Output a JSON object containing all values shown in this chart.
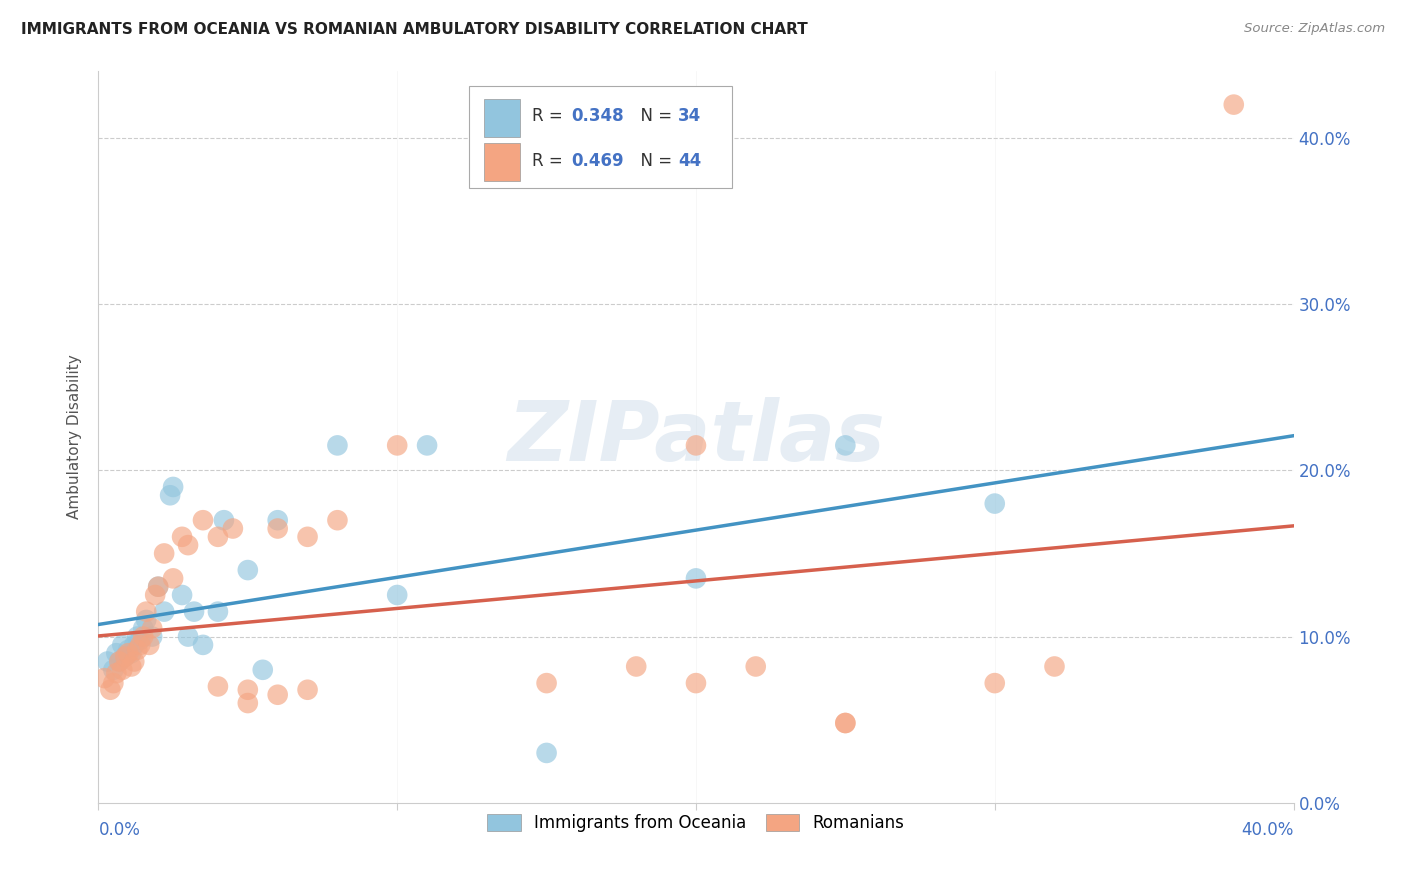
{
  "title": "IMMIGRANTS FROM OCEANIA VS ROMANIAN AMBULATORY DISABILITY CORRELATION CHART",
  "source": "Source: ZipAtlas.com",
  "ylabel": "Ambulatory Disability",
  "xlim": [
    0.0,
    0.4
  ],
  "ylim": [
    0.0,
    0.44
  ],
  "legend1_R": "0.348",
  "legend1_N": "34",
  "legend2_R": "0.469",
  "legend2_N": "44",
  "blue_color": "#92c5de",
  "pink_color": "#f4a582",
  "blue_line_color": "#4393c3",
  "pink_line_color": "#d6604d",
  "watermark_text": "ZIPatlas",
  "oceania_x": [
    0.003,
    0.005,
    0.006,
    0.007,
    0.008,
    0.009,
    0.01,
    0.011,
    0.012,
    0.013,
    0.014,
    0.015,
    0.016,
    0.018,
    0.02,
    0.022,
    0.024,
    0.025,
    0.028,
    0.03,
    0.032,
    0.035,
    0.04,
    0.042,
    0.05,
    0.055,
    0.06,
    0.08,
    0.1,
    0.11,
    0.15,
    0.2,
    0.25,
    0.3
  ],
  "oceania_y": [
    0.085,
    0.08,
    0.09,
    0.085,
    0.095,
    0.088,
    0.092,
    0.09,
    0.095,
    0.1,
    0.098,
    0.105,
    0.11,
    0.1,
    0.13,
    0.115,
    0.185,
    0.19,
    0.125,
    0.1,
    0.115,
    0.095,
    0.115,
    0.17,
    0.14,
    0.08,
    0.17,
    0.215,
    0.125,
    0.215,
    0.03,
    0.135,
    0.215,
    0.18
  ],
  "romanian_x": [
    0.002,
    0.004,
    0.005,
    0.006,
    0.007,
    0.008,
    0.009,
    0.01,
    0.011,
    0.012,
    0.013,
    0.014,
    0.015,
    0.016,
    0.017,
    0.018,
    0.019,
    0.02,
    0.022,
    0.025,
    0.028,
    0.03,
    0.035,
    0.04,
    0.045,
    0.05,
    0.06,
    0.07,
    0.08,
    0.1,
    0.15,
    0.2,
    0.25,
    0.3,
    0.32,
    0.18,
    0.22,
    0.25,
    0.2,
    0.07,
    0.06,
    0.05,
    0.38,
    0.04
  ],
  "romanian_y": [
    0.075,
    0.068,
    0.072,
    0.078,
    0.085,
    0.08,
    0.088,
    0.09,
    0.082,
    0.085,
    0.092,
    0.095,
    0.1,
    0.115,
    0.095,
    0.105,
    0.125,
    0.13,
    0.15,
    0.135,
    0.16,
    0.155,
    0.17,
    0.16,
    0.165,
    0.068,
    0.065,
    0.068,
    0.17,
    0.215,
    0.072,
    0.072,
    0.048,
    0.072,
    0.082,
    0.082,
    0.082,
    0.048,
    0.215,
    0.16,
    0.165,
    0.06,
    0.42,
    0.07
  ]
}
